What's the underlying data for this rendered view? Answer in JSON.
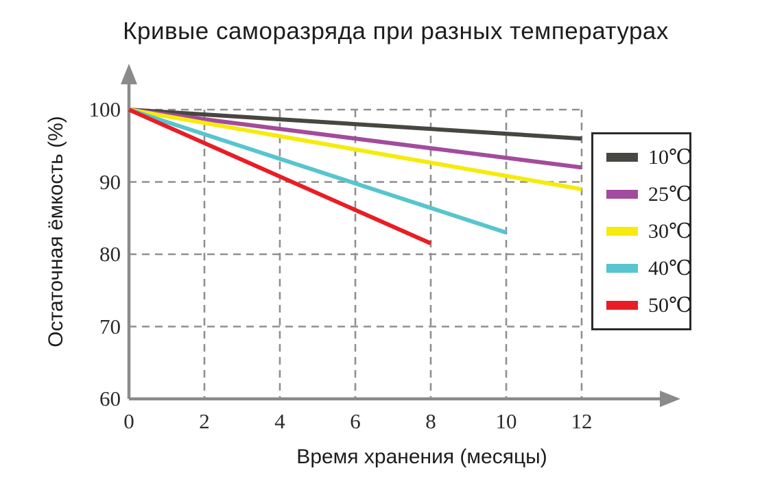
{
  "chart_data": {
    "type": "line",
    "title": "Кривые саморазряда при разных температурах",
    "xlabel": "Время хранения (месяцы)",
    "ylabel": "Остаточная ёмкость (%)",
    "x_ticks": [
      0,
      2,
      4,
      6,
      8,
      10,
      12
    ],
    "y_ticks": [
      100,
      90,
      80,
      70,
      60
    ],
    "xlim": [
      0,
      12
    ],
    "ylim": [
      60,
      100
    ],
    "grid": true,
    "legend_position": "right",
    "series": [
      {
        "name": "10℃",
        "color": "#474640",
        "x": [
          0,
          12
        ],
        "y": [
          100,
          96
        ]
      },
      {
        "name": "25℃",
        "color": "#a34b9d",
        "x": [
          0,
          12
        ],
        "y": [
          100,
          92
        ]
      },
      {
        "name": "30℃",
        "color": "#f6eb0b",
        "x": [
          0,
          12
        ],
        "y": [
          100,
          89
        ]
      },
      {
        "name": "40℃",
        "color": "#57c5cf",
        "x": [
          0,
          10
        ],
        "y": [
          100,
          83
        ]
      },
      {
        "name": "50℃",
        "color": "#e91d25",
        "x": [
          0,
          8
        ],
        "y": [
          100,
          81.5
        ]
      }
    ],
    "colors": {
      "axis": "#8a8a8a",
      "grid": "#8f8f8f",
      "text": "#1d1d1d"
    }
  }
}
